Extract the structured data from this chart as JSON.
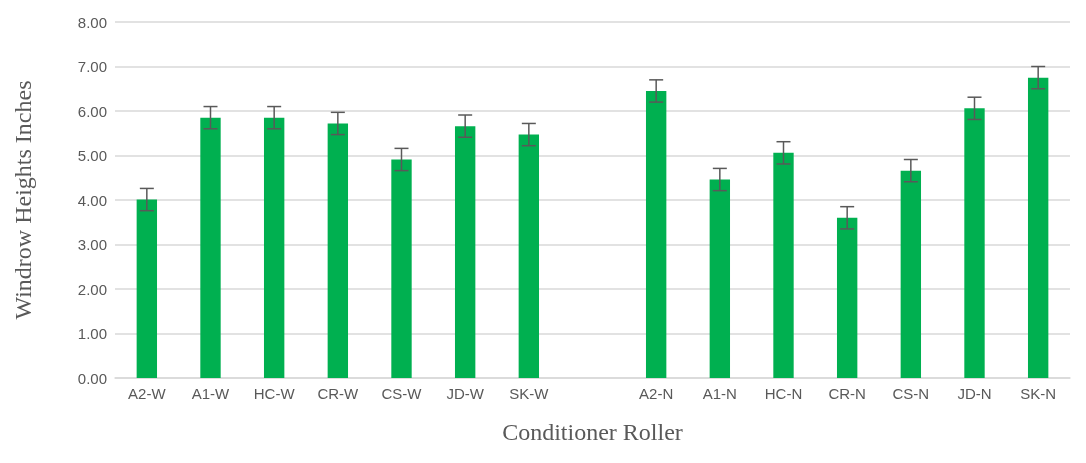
{
  "chart_data": {
    "type": "bar",
    "xlabel": "Conditioner Roller",
    "ylabel": "Windrow Heights Inches",
    "categories": [
      "A2-W",
      "A1-W",
      "HC-W",
      "CR-W",
      "CS-W",
      "JD-W",
      "SK-W",
      null,
      "A2-N",
      "A1-N",
      "HC-N",
      "CR-N",
      "CS-N",
      "JD-N",
      "SK-N"
    ],
    "values": [
      4.01,
      5.85,
      5.85,
      5.72,
      4.91,
      5.66,
      5.47,
      null,
      6.45,
      4.46,
      5.06,
      3.6,
      4.66,
      6.06,
      6.75
    ],
    "errors": [
      0.25,
      0.25,
      0.25,
      0.25,
      0.25,
      0.25,
      0.25,
      null,
      0.25,
      0.25,
      0.25,
      0.25,
      0.25,
      0.25,
      0.25
    ],
    "color": "#00b050",
    "ylim": [
      0,
      8
    ],
    "yticks": [
      {
        "value": 0,
        "label": "0.00"
      },
      {
        "value": 1,
        "label": "1.00"
      },
      {
        "value": 2,
        "label": "2.00"
      },
      {
        "value": 3,
        "label": "3.00"
      },
      {
        "value": 4,
        "label": "4.00"
      },
      {
        "value": 5,
        "label": "5.00"
      },
      {
        "value": 6,
        "label": "6.00"
      },
      {
        "value": 7,
        "label": "7.00"
      },
      {
        "value": 8,
        "label": "8.00"
      }
    ],
    "grid": "y"
  }
}
